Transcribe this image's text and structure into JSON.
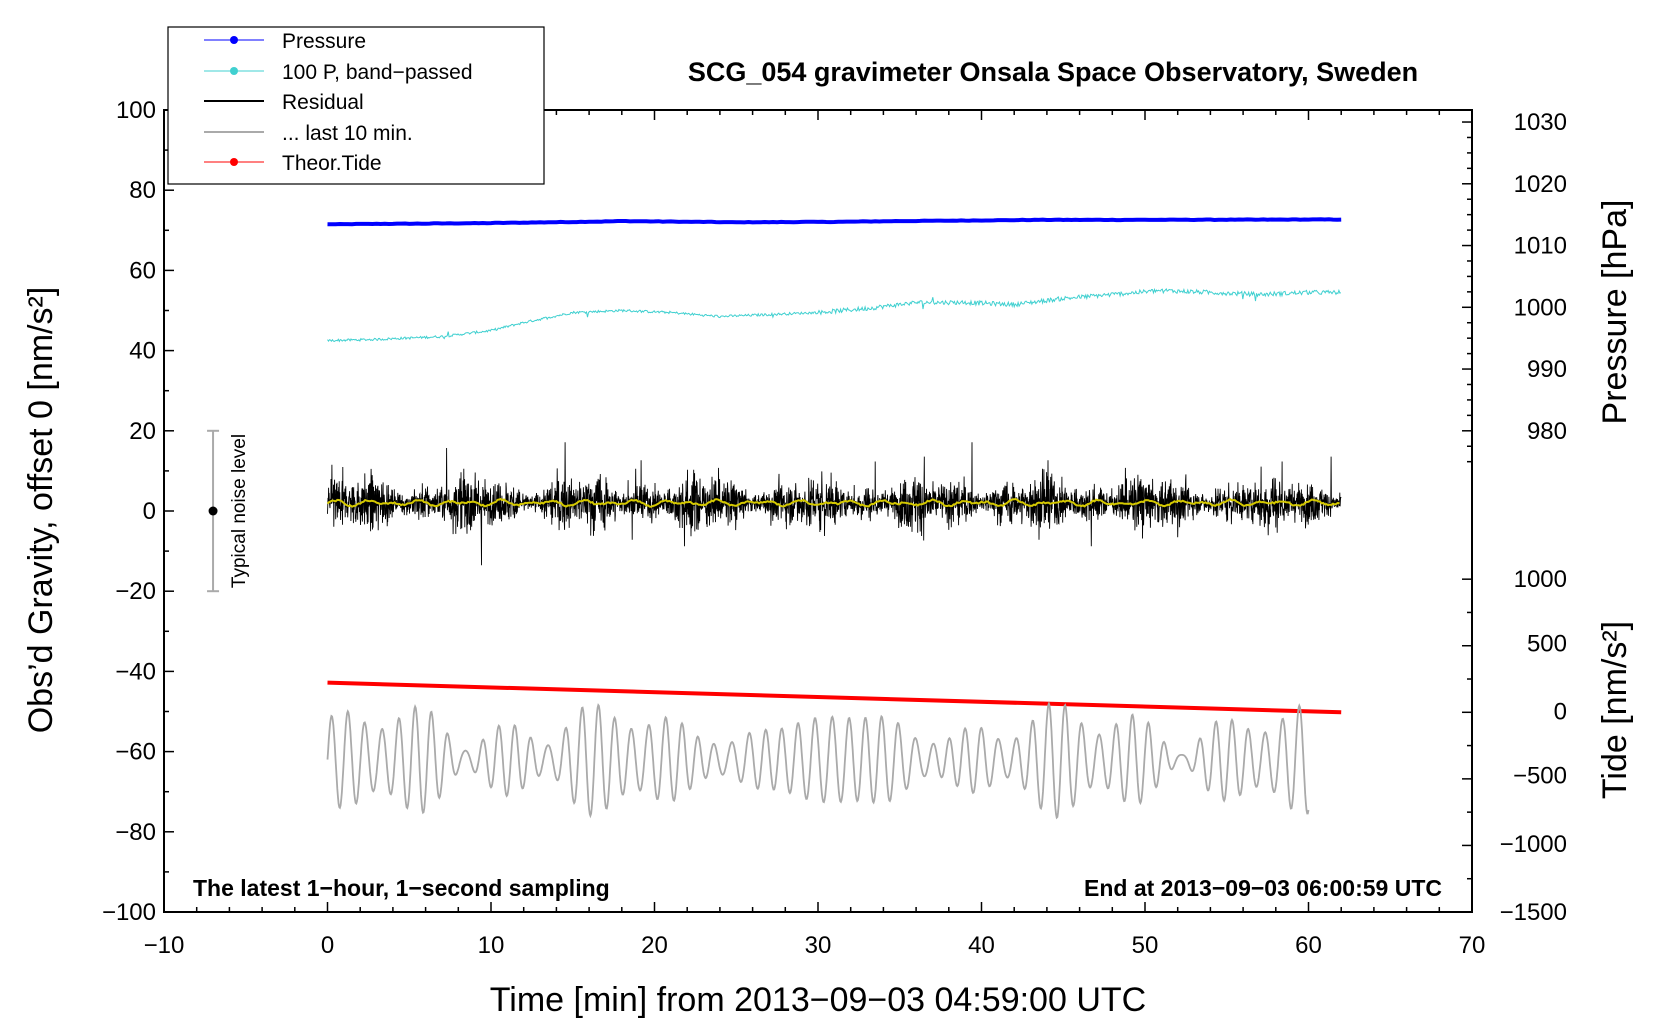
{
  "chart_data": {
    "type": "line",
    "title": "SCG_054 gravimeter Onsala Space Observatory, Sweden",
    "xlabel": "Time [min] from 2013−09−03 04:59:00 UTC",
    "ylabel": "Obs’d Gravity, offset 0 [nm/s²]",
    "ylabel_right_top": "Pressure [hPa]",
    "ylabel_right_bottom": "Tide [nm/s²]",
    "xlim": [
      -10,
      70
    ],
    "ylim": [
      -100,
      100
    ],
    "xticks": [
      "−10",
      "0",
      "10",
      "20",
      "30",
      "40",
      "50",
      "60",
      "70"
    ],
    "xtick_values": [
      -10,
      0,
      10,
      20,
      30,
      40,
      50,
      60,
      70
    ],
    "yticks": [
      "−100",
      "−80",
      "−60",
      "−40",
      "−20",
      "0",
      "20",
      "40",
      "60",
      "80",
      "100"
    ],
    "ytick_values": [
      -100,
      -80,
      -60,
      -40,
      -20,
      0,
      20,
      40,
      60,
      80,
      100
    ],
    "pressure_axis": {
      "ticks": [
        "980",
        "990",
        "1000",
        "1010",
        "1020",
        "1030"
      ],
      "values": [
        980,
        990,
        1000,
        1010,
        1020,
        1030
      ],
      "equiv_gravity": [
        20.0,
        35.4,
        50.8,
        66.2,
        81.6,
        97.0
      ]
    },
    "tide_axis": {
      "ticks": [
        "−1500",
        "−1000",
        "−500",
        "0",
        "500",
        "1000"
      ],
      "values": [
        -1500,
        -1000,
        -500,
        0,
        500,
        1000
      ],
      "equiv_gravity": [
        -100,
        -83,
        -66,
        -50,
        -33,
        -17
      ]
    },
    "legend": [
      {
        "label": "Pressure",
        "color": "#0000ff",
        "style": "line-dot"
      },
      {
        "label": "100 P, band−passed",
        "color": "#40d0d0",
        "style": "line-dot"
      },
      {
        "label": "Residual",
        "color": "#000000",
        "style": "line"
      },
      {
        "label": "... last 10 min.",
        "color": "#aaaaaa",
        "style": "line"
      },
      {
        "label": "Theor.Tide",
        "color": "#ff0000",
        "style": "line-dot"
      }
    ],
    "series": [
      {
        "name": "Pressure",
        "color": "#0000ff",
        "x": [
          0,
          10,
          17,
          18,
          25,
          31,
          35,
          43.5,
          50,
          62
        ],
        "y": [
          71.5,
          71.8,
          72.2,
          72.3,
          72.0,
          72.1,
          72.3,
          72.6,
          72.6,
          72.7
        ]
      },
      {
        "name": "100 P, band−passed",
        "color": "#40d0d0",
        "x": [
          0,
          3,
          7,
          10,
          12,
          15,
          18,
          21,
          24,
          27,
          30,
          33,
          36,
          39,
          42,
          45,
          48,
          51,
          54,
          57,
          60,
          62
        ],
        "y": [
          42.5,
          42.8,
          43.5,
          45,
          47,
          49.5,
          50,
          49.5,
          48.5,
          49,
          49.5,
          50.5,
          52,
          52,
          51.5,
          53,
          54,
          55,
          54.5,
          54,
          54.5,
          54.5
        ]
      },
      {
        "name": "Residual",
        "color": "#000000",
        "x_range": [
          0,
          62
        ],
        "center": 2,
        "typical_amplitude": 8,
        "max": 20,
        "min": -17
      },
      {
        "name": "Residual smoothed",
        "color": "#d4c800",
        "x_range": [
          0,
          62
        ],
        "mean": 2
      },
      {
        "name": "Theor.Tide",
        "color": "#ff0000",
        "x": [
          0,
          62
        ],
        "y": [
          -42.8,
          -50.2
        ]
      },
      {
        "name": "... last 10 min.",
        "color": "#aaaaaa",
        "x_range": [
          0,
          60
        ],
        "center": -62,
        "typical_amplitude": 9,
        "max": -47,
        "min": -79
      }
    ],
    "noise_bar": {
      "x": -7,
      "center": 0,
      "low": -20,
      "high": 20,
      "label": "Typical noise level"
    },
    "annotations": {
      "left": "The latest 1−hour, 1−second sampling",
      "right": "End at 2013−09−03 06:00:59 UTC"
    }
  }
}
